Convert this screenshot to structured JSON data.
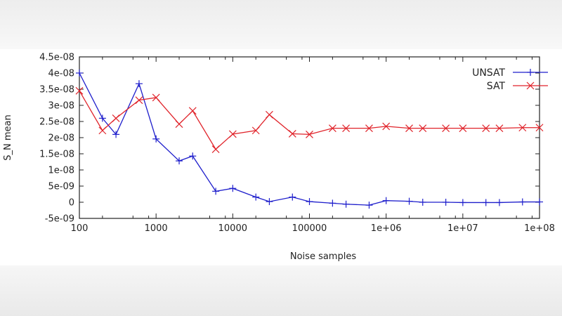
{
  "chart_data": {
    "type": "line",
    "title": "",
    "xlabel": "Noise samples",
    "ylabel": "S_N mean",
    "xscale": "log",
    "xlim": [
      100,
      100000000
    ],
    "ylim": [
      -5e-09,
      4.5e-08
    ],
    "x_tick_labels": [
      "100",
      "1000",
      "10000",
      "100000",
      "1e+06",
      "1e+07",
      "1e+08"
    ],
    "y_tick_labels": [
      "4.5e-08",
      "4e-08",
      "3.5e-08",
      "3e-08",
      "2.5e-08",
      "2e-08",
      "1.5e-08",
      "1e-08",
      "5e-09",
      "0",
      "-5e-09"
    ],
    "legend_position": "top-right",
    "grid": false,
    "x": [
      100,
      200,
      300,
      600,
      1000,
      2000,
      3000,
      6000,
      10000,
      20000,
      30000,
      60000,
      100000,
      200000,
      300000,
      600000,
      1000000,
      2000000,
      3000000,
      6000000,
      10000000,
      20000000,
      30000000,
      60000000,
      100000000
    ],
    "series": [
      {
        "name": "UNSAT",
        "color": "#1f1fcc",
        "marker": "+",
        "values": [
          4e-08,
          2.6e-08,
          2.1e-08,
          3.67e-08,
          1.96e-08,
          1.28e-08,
          1.43e-08,
          3.4e-09,
          4.3e-09,
          1.6e-09,
          2e-10,
          1.6e-09,
          2e-10,
          -3e-10,
          -6e-10,
          -9e-10,
          5e-10,
          3e-10,
          0,
          0,
          -1e-10,
          -1e-10,
          -1e-10,
          1e-10,
          1e-10
        ]
      },
      {
        "name": "SAT",
        "color": "#e0232a",
        "marker": "x",
        "values": [
          3.45e-08,
          2.22e-08,
          2.6e-08,
          3.16e-08,
          3.24e-08,
          2.42e-08,
          2.83e-08,
          1.64e-08,
          2.11e-08,
          2.22e-08,
          2.71e-08,
          2.12e-08,
          2.1e-08,
          2.29e-08,
          2.29e-08,
          2.29e-08,
          2.35e-08,
          2.29e-08,
          2.29e-08,
          2.29e-08,
          2.29e-08,
          2.29e-08,
          2.29e-08,
          2.31e-08,
          2.31e-08
        ]
      }
    ]
  }
}
